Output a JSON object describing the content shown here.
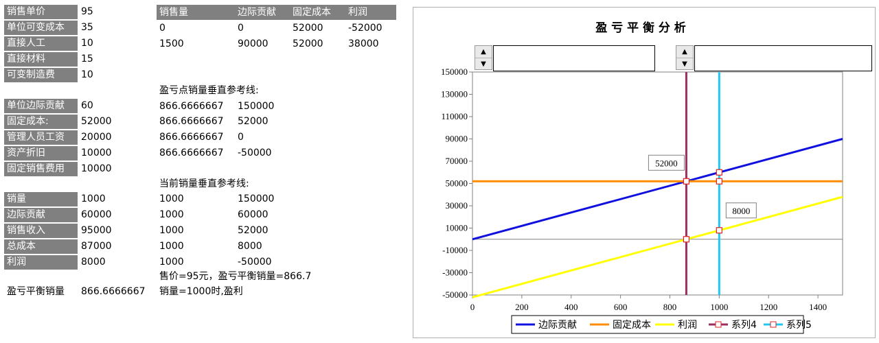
{
  "params": [
    {
      "label": "销售单价",
      "value": "95"
    },
    {
      "label": "单位可变成本",
      "value": "35"
    },
    {
      "label": "直接人工",
      "value": "10"
    },
    {
      "label": "直接材料",
      "value": "15"
    },
    {
      "label": "可变制造费",
      "value": "10"
    }
  ],
  "fixed": [
    {
      "label": "单位边际贡献",
      "value": "60"
    },
    {
      "label": "固定成本:",
      "value": "52000"
    },
    {
      "label": "管理人员工资",
      "value": "20000"
    },
    {
      "label": "资产折旧",
      "value": "10000"
    },
    {
      "label": "固定销售费用",
      "value": "10000"
    }
  ],
  "results": [
    {
      "label": "销量",
      "value": "1000"
    },
    {
      "label": "边际贡献",
      "value": "60000"
    },
    {
      "label": "销售收入",
      "value": "95000"
    },
    {
      "label": "总成本",
      "value": "87000"
    },
    {
      "label": "利润",
      "value": "8000"
    }
  ],
  "breakeven": {
    "label": "盈亏平衡销量",
    "value": "866.6666667"
  },
  "table": {
    "headers": [
      "销售量",
      "边际贡献",
      "固定成本",
      "利润"
    ],
    "rows": [
      [
        "0",
        "0",
        "52000",
        "-52000"
      ],
      [
        "1500",
        "90000",
        "52000",
        "38000"
      ]
    ]
  },
  "ref1": {
    "title": "盈亏点销量垂直参考线:",
    "rows": [
      [
        "866.6666667",
        "150000"
      ],
      [
        "866.6666667",
        "52000"
      ],
      [
        "866.6666667",
        "0"
      ],
      [
        "866.6666667",
        "-50000"
      ]
    ]
  },
  "ref2": {
    "title": "当前销量垂直参考线:",
    "rows": [
      [
        "1000",
        "150000"
      ],
      [
        "1000",
        "60000"
      ],
      [
        "1000",
        "52000"
      ],
      [
        "1000",
        "8000"
      ],
      [
        "1000",
        "-50000"
      ]
    ]
  },
  "notes": [
    "售价=95元，盈亏平衡销量=866.7",
    "销量=1000时,盈利"
  ],
  "spinners": {
    "up": "▲",
    "down": "▼"
  },
  "chart_data": {
    "type": "line",
    "title": "盈 亏 平 衡 分 析",
    "xlim": [
      0,
      1500
    ],
    "ylim": [
      -50000,
      150000
    ],
    "xticks": [
      "0",
      "200",
      "400",
      "600",
      "800",
      "1000",
      "1200",
      "1400"
    ],
    "yticks": [
      "150000",
      "130000",
      "110000",
      "90000",
      "70000",
      "50000",
      "30000",
      "10000",
      "-10000",
      "-30000",
      "-50000"
    ],
    "series": [
      {
        "name": "边际贡献",
        "color": "#1010e0",
        "x": [
          0,
          1500
        ],
        "y": [
          0,
          90000
        ],
        "marker": false
      },
      {
        "name": "固定成本",
        "color": "#ff8c00",
        "x": [
          0,
          1500
        ],
        "y": [
          52000,
          52000
        ],
        "marker": false
      },
      {
        "name": "利润",
        "color": "#ffff00",
        "x": [
          0,
          1500
        ],
        "y": [
          -52000,
          38000
        ],
        "marker": false
      },
      {
        "name": "系列4",
        "color": "#9b2d5f",
        "x": [
          866.6666667,
          866.6666667,
          866.6666667,
          866.6666667
        ],
        "y": [
          150000,
          52000,
          0,
          -50000
        ],
        "marker": true
      },
      {
        "name": "系列5",
        "color": "#1ec8f0",
        "x": [
          1000,
          1000,
          1000,
          1000,
          1000
        ],
        "y": [
          150000,
          60000,
          52000,
          8000,
          -50000
        ],
        "marker": true
      }
    ],
    "annotations": [
      {
        "text": "52000",
        "x": 866.6666667,
        "y": 52000
      },
      {
        "text": "8000",
        "x": 1000,
        "y": 8000
      }
    ],
    "legend": "bottom"
  }
}
